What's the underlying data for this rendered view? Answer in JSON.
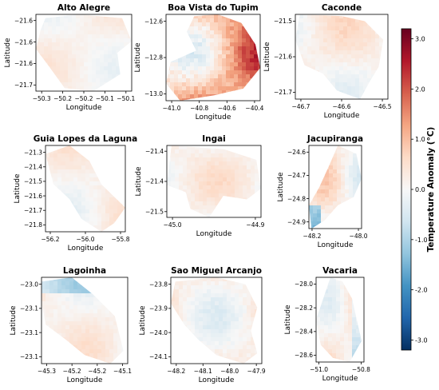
{
  "figure": {
    "colorbar": {
      "label": "Temperature Anomaly (°C)",
      "range": [
        -3.2,
        3.2
      ],
      "ticks": [
        "3.0",
        "2.0",
        "1.0",
        "0.0",
        "-1.0",
        "-2.0",
        "-3.0"
      ],
      "tick_values": [
        3,
        2,
        1,
        0,
        -1,
        -2,
        -3
      ],
      "colormap": [
        "#053061",
        "#2166ac",
        "#4393c3",
        "#92c5de",
        "#d1e5f0",
        "#f7f7f7",
        "#fddbc7",
        "#f4a582",
        "#d6604d",
        "#b2182b",
        "#67001f"
      ]
    }
  },
  "chart_data": [
    {
      "type": "heatmap",
      "title": "Alto Alegre",
      "xlabel": "Longitude",
      "ylabel": "Latitude",
      "xticks": [
        "−50.3",
        "−50.2",
        "−50.2",
        "−50.1",
        "−50.1"
      ],
      "yticks": [
        "−21.6",
        "−21.6",
        "−21.6",
        "−21.7"
      ],
      "intensity": 0.4,
      "seed": 3
    },
    {
      "type": "heatmap",
      "title": "Boa Vista do Tupim",
      "xlabel": "Longitude",
      "ylabel": "Latitude",
      "xticks": [
        "−41.0",
        "−40.8",
        "−40.6",
        "−40.4"
      ],
      "yticks": [
        "−12.6",
        "−12.8",
        "−13.0"
      ],
      "intensity": 1.4,
      "seed": 7
    },
    {
      "type": "heatmap",
      "title": "Caconde",
      "xlabel": "Longitude",
      "ylabel": "Latitude",
      "xticks": [
        "−46.7",
        "−46.6",
        "−46.5"
      ],
      "yticks": [
        "−21.5",
        "−21.6",
        "−21.7"
      ],
      "intensity": 0.6,
      "seed": 11
    },
    {
      "type": "heatmap",
      "title": "Guia Lopes da Laguna",
      "xlabel": "Longitude",
      "ylabel": "Latitude",
      "xticks": [
        "−56.2",
        "−56.0",
        "−55.8"
      ],
      "yticks": [
        "−21.3",
        "−21.4",
        "−21.5",
        "−21.6",
        "−21.7",
        "−21.8"
      ],
      "intensity": 0.5,
      "seed": 13
    },
    {
      "type": "heatmap",
      "title": "Ingai",
      "xlabel": "Longitude",
      "ylabel": "Latitude",
      "xticks": [
        "−45.0",
        "−44.9"
      ],
      "yticks": [
        "−21.4",
        "−21.4",
        "−21.5"
      ],
      "intensity": 0.55,
      "seed": 17
    },
    {
      "type": "heatmap",
      "title": "Jacupiranga",
      "xlabel": "Longitude",
      "ylabel": "Latitude",
      "xticks": [
        "−48.2",
        "−48.0"
      ],
      "yticks": [
        "−24.6",
        "−24.7",
        "−24.8",
        "−24.9"
      ],
      "intensity": 0.8,
      "seed": 19
    },
    {
      "type": "heatmap",
      "title": "Lagoinha",
      "xlabel": "Longitude",
      "ylabel": "Latitude",
      "xticks": [
        "−45.3",
        "−45.2",
        "−45.2",
        "−45.1"
      ],
      "yticks": [
        "−23.0",
        "−23.1",
        "−23.1",
        "−23.1"
      ],
      "intensity": 0.5,
      "seed": 23
    },
    {
      "type": "heatmap",
      "title": "Sao Miguel Arcanjo",
      "xlabel": "Longitude",
      "ylabel": "Latitude",
      "xticks": [
        "−48.2",
        "−48.1",
        "−48.0",
        "−47.9"
      ],
      "yticks": [
        "−23.8",
        "−23.9",
        "−24.0",
        "−24.1"
      ],
      "intensity": 0.7,
      "seed": 29
    },
    {
      "type": "heatmap",
      "title": "Vacaria",
      "xlabel": "Longitude",
      "ylabel": "Latitude",
      "xticks": [
        "−51.0",
        "−50.8"
      ],
      "yticks": [
        "−28.0",
        "−28.2",
        "−28.4",
        "−28.6"
      ],
      "intensity": 0.6,
      "seed": 31
    }
  ]
}
